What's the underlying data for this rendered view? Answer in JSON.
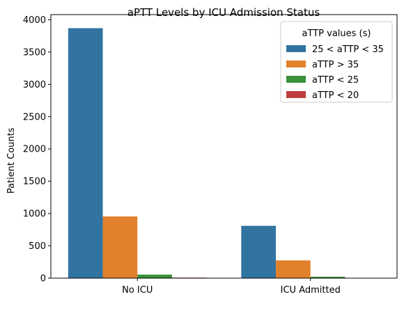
{
  "chart_data": {
    "type": "bar",
    "title": "aPTT Levels by ICU Admission Status",
    "xlabel": "",
    "ylabel": "Patient Counts",
    "categories": [
      "No ICU",
      "ICU Admitted"
    ],
    "ylim": [
      0,
      4080
    ],
    "yticks": [
      0,
      500,
      1000,
      1500,
      2000,
      2500,
      3000,
      3500,
      4000
    ],
    "grid": false,
    "legend": {
      "title": "aTTP values (s)",
      "placement": "top-right"
    },
    "series": [
      {
        "name": "25 < aTTP < 35",
        "color": "#3274a1",
        "values": [
          3870,
          810
        ]
      },
      {
        "name": "aTTP > 35",
        "color": "#e1812c",
        "values": [
          955,
          275
        ]
      },
      {
        "name": " aTTP < 25",
        "color": "#3a923a",
        "values": [
          55,
          22
        ]
      },
      {
        "name": "aTTP < 20",
        "color": "#c03d3e",
        "values": [
          8,
          0
        ]
      }
    ]
  }
}
